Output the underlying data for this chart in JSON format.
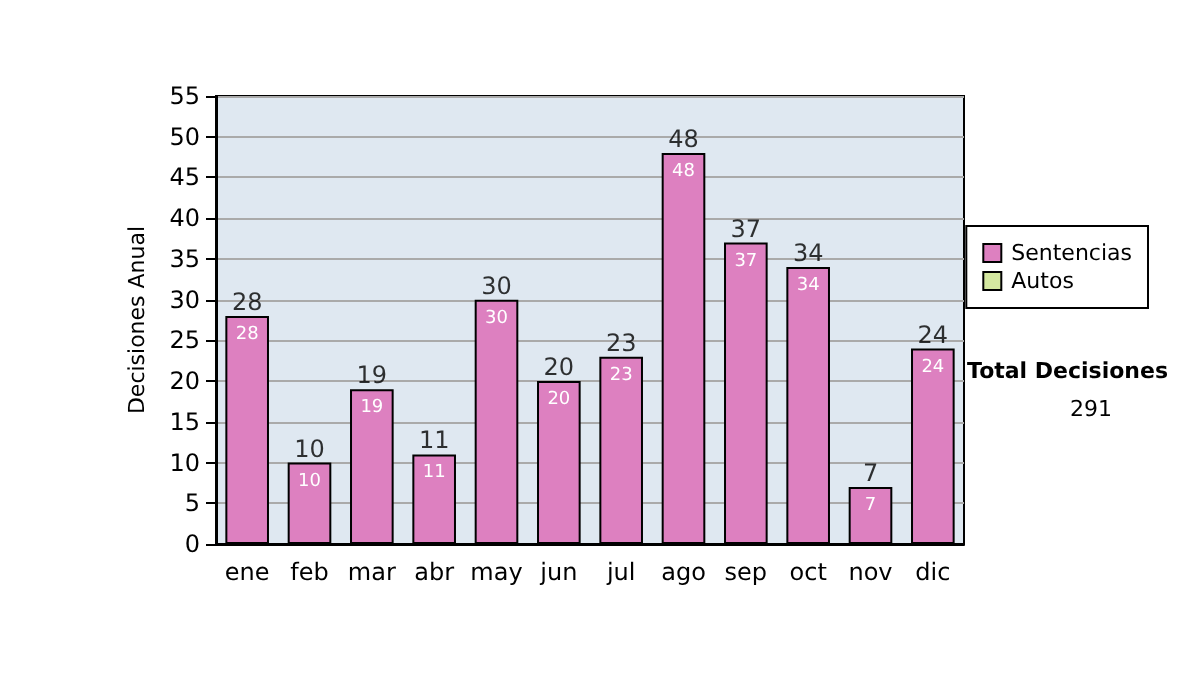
{
  "chart_data": {
    "type": "bar",
    "stacked": true,
    "categories": [
      "ene",
      "feb",
      "mar",
      "abr",
      "may",
      "jun",
      "jul",
      "ago",
      "sep",
      "oct",
      "nov",
      "dic"
    ],
    "series": [
      {
        "name": "Sentencias",
        "color": "#dd80c0",
        "values": [
          28,
          10,
          19,
          11,
          30,
          20,
          23,
          48,
          37,
          34,
          7,
          24
        ]
      },
      {
        "name": "Autos",
        "color": "#d4e8a0",
        "values": [
          null,
          null,
          null,
          null,
          null,
          null,
          null,
          null,
          null,
          null,
          null,
          null
        ]
      }
    ],
    "totals": [
      "28",
      "10",
      "19",
      "11",
      "30",
      "20",
      "23",
      "48",
      "37",
      "34",
      "7",
      "24"
    ],
    "data_labels": true,
    "ylabel": "Decisiones Anual",
    "ylim": [
      0,
      55
    ],
    "yticks": [
      0,
      5,
      10,
      15,
      20,
      25,
      30,
      35,
      40,
      45,
      50,
      55
    ],
    "grid": "y",
    "legend": "right",
    "annotations": [
      "Total Decisiones",
      "291"
    ]
  }
}
